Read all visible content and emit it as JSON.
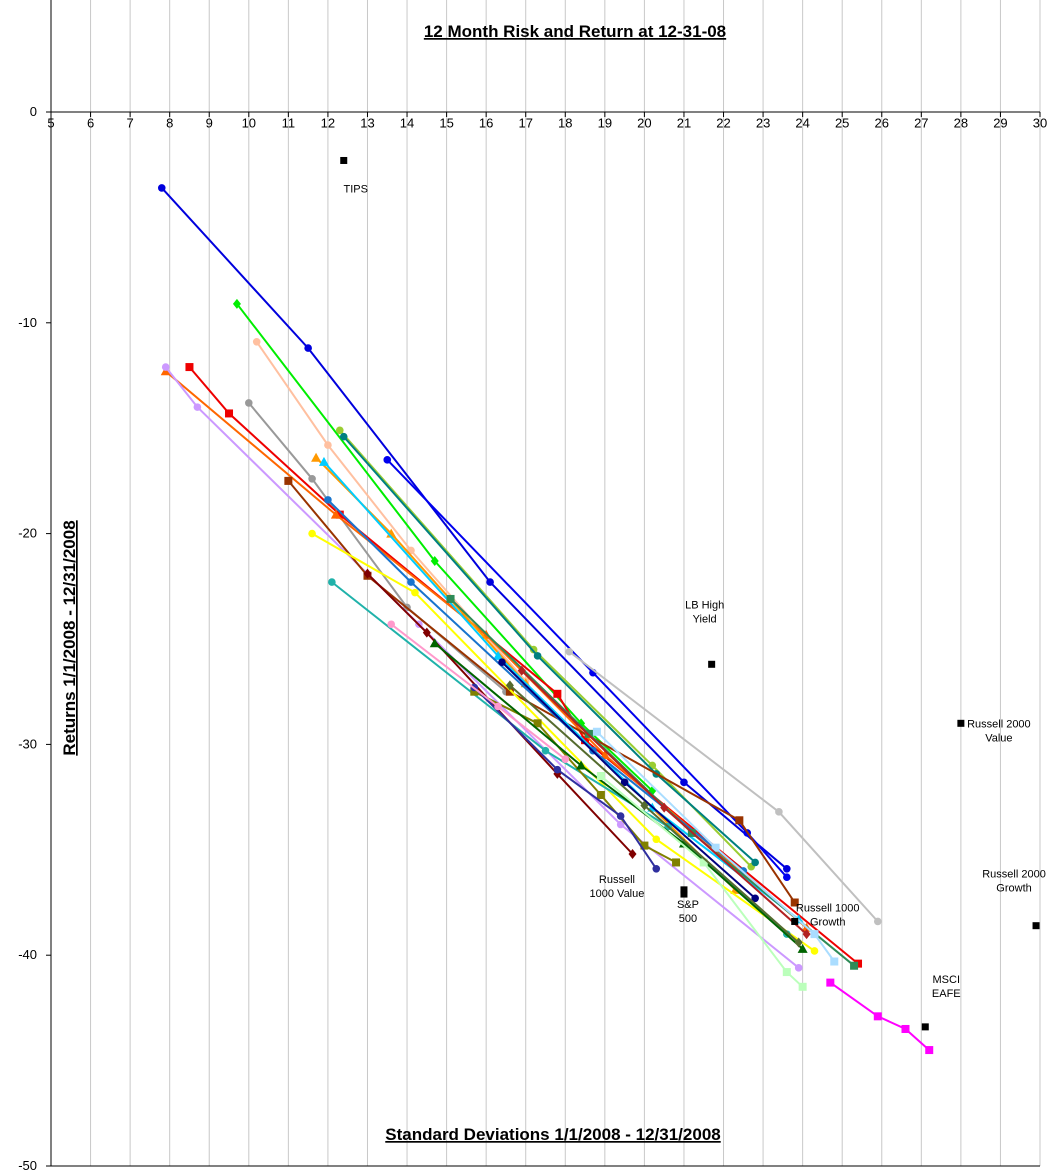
{
  "chart_data": {
    "type": "scatter",
    "title": "12 Month Risk and Return at 12-31-08",
    "xlabel": "Standard Deviations 1/1/2008 - 12/31/2008",
    "ylabel": "Returns 1/1/2008 - 12/31/2008",
    "xlim": [
      5,
      30
    ],
    "ylim": [
      -50,
      0
    ],
    "x_ticks": [
      "5",
      "6",
      "7",
      "8",
      "9",
      "10",
      "11",
      "12",
      "13",
      "14",
      "15",
      "16",
      "17",
      "18",
      "19",
      "20",
      "21",
      "22",
      "23",
      "24",
      "25",
      "26",
      "27",
      "28",
      "29",
      "30"
    ],
    "y_ticks": [
      "0",
      "-10",
      "-20",
      "-30",
      "-40",
      "-50"
    ],
    "grid": true,
    "legend": "none",
    "benchmarks": [
      {
        "label": "TIPS",
        "x": 12.4,
        "y": -2.3
      },
      {
        "label": "LB High Yield",
        "x": 21.7,
        "y": -26.2
      },
      {
        "label": "Russell 2000 Value",
        "x": 28.0,
        "y": -29.0
      },
      {
        "label": "Russell 2000 Growth",
        "x": 29.9,
        "y": -38.6
      },
      {
        "label": "Russell 1000 Value",
        "x": 21.0,
        "y": -36.9
      },
      {
        "label": "S&P 500",
        "x": 21.0,
        "y": -37.1
      },
      {
        "label": "Russell 1000 Growth",
        "x": 23.8,
        "y": -38.4
      },
      {
        "label": "MSCI EAFE",
        "x": 27.1,
        "y": -43.4
      }
    ],
    "series": [
      {
        "color": "#0000dd",
        "marker": "circle",
        "points": [
          [
            7.8,
            -3.6
          ],
          [
            11.5,
            -11.2
          ],
          [
            16.1,
            -22.3
          ],
          [
            21.0,
            -31.8
          ],
          [
            23.6,
            -35.9
          ]
        ]
      },
      {
        "color": "#0000ee",
        "marker": "circle",
        "points": [
          [
            13.5,
            -16.5
          ],
          [
            18.7,
            -26.6
          ],
          [
            22.6,
            -34.2
          ],
          [
            23.6,
            -36.3
          ]
        ]
      },
      {
        "color": "#00ee00",
        "marker": "diamond",
        "points": [
          [
            9.7,
            -9.1
          ],
          [
            14.7,
            -21.3
          ],
          [
            18.4,
            -29.0
          ],
          [
            20.2,
            -32.2
          ]
        ]
      },
      {
        "color": "#9acd32",
        "marker": "circle",
        "points": [
          [
            12.3,
            -15.1
          ],
          [
            17.2,
            -25.5
          ],
          [
            20.2,
            -31.0
          ],
          [
            22.7,
            -35.8
          ]
        ]
      },
      {
        "color": "#008080",
        "marker": "circle",
        "points": [
          [
            12.4,
            -15.4
          ],
          [
            17.3,
            -25.8
          ],
          [
            20.3,
            -31.4
          ],
          [
            22.8,
            -35.6
          ]
        ]
      },
      {
        "color": "#ffc0a0",
        "marker": "circle",
        "points": [
          [
            10.2,
            -10.9
          ],
          [
            12.0,
            -15.8
          ],
          [
            14.1,
            -20.8
          ],
          [
            17.0,
            -27.0
          ]
        ]
      },
      {
        "color": "#999999",
        "marker": "circle",
        "points": [
          [
            10.0,
            -13.8
          ],
          [
            11.6,
            -17.4
          ],
          [
            14.0,
            -23.5
          ],
          [
            16.5,
            -27.5
          ]
        ]
      },
      {
        "color": "#ee0000",
        "marker": "square",
        "points": [
          [
            8.5,
            -12.1
          ],
          [
            9.5,
            -14.3
          ],
          [
            12.3,
            -19.1
          ],
          [
            17.8,
            -27.6
          ],
          [
            18.5,
            -29.8
          ],
          [
            25.4,
            -40.4
          ]
        ]
      },
      {
        "color": "#ff6600",
        "marker": "triangle",
        "points": [
          [
            7.9,
            -12.3
          ],
          [
            12.2,
            -19.1
          ],
          [
            16.0,
            -24.8
          ],
          [
            19.0,
            -30.5
          ],
          [
            24.1,
            -38.7
          ]
        ]
      },
      {
        "color": "#cc99ff",
        "marker": "circle",
        "points": [
          [
            7.9,
            -12.1
          ],
          [
            8.7,
            -14.0
          ],
          [
            14.3,
            -24.3
          ],
          [
            19.4,
            -33.8
          ],
          [
            23.9,
            -40.6
          ]
        ]
      },
      {
        "color": "#993300",
        "marker": "square",
        "points": [
          [
            11.0,
            -17.5
          ],
          [
            13.0,
            -22.0
          ],
          [
            16.6,
            -27.5
          ],
          [
            22.4,
            -33.6
          ],
          [
            23.8,
            -37.5
          ]
        ]
      },
      {
        "color": "#ff9900",
        "marker": "triangle",
        "points": [
          [
            11.7,
            -16.4
          ],
          [
            13.6,
            -20.0
          ],
          [
            17.0,
            -27.1
          ],
          [
            22.3,
            -36.9
          ]
        ]
      },
      {
        "color": "#00ccff",
        "marker": "triangle",
        "points": [
          [
            11.9,
            -16.6
          ],
          [
            16.3,
            -25.8
          ],
          [
            20.2,
            -33.0
          ],
          [
            23.9,
            -38.3
          ]
        ]
      },
      {
        "color": "#1874cd",
        "marker": "circle",
        "points": [
          [
            12.0,
            -18.4
          ],
          [
            14.1,
            -22.3
          ],
          [
            18.7,
            -30.3
          ],
          [
            22.5,
            -36.0
          ]
        ]
      },
      {
        "color": "#ffff00",
        "marker": "circle",
        "points": [
          [
            11.6,
            -20.0
          ],
          [
            14.2,
            -22.8
          ],
          [
            20.3,
            -34.5
          ],
          [
            24.3,
            -39.8
          ]
        ]
      },
      {
        "color": "#20b2aa",
        "marker": "circle",
        "points": [
          [
            12.1,
            -22.3
          ],
          [
            17.5,
            -30.3
          ],
          [
            20.6,
            -33.9
          ],
          [
            23.6,
            -39.0
          ]
        ]
      },
      {
        "color": "#808000",
        "marker": "square",
        "points": [
          [
            15.7,
            -27.5
          ],
          [
            17.3,
            -29.0
          ],
          [
            18.9,
            -32.4
          ],
          [
            20.0,
            -34.8
          ],
          [
            20.8,
            -35.6
          ]
        ]
      },
      {
        "color": "#800000",
        "marker": "diamond",
        "points": [
          [
            13.0,
            -21.9
          ],
          [
            14.5,
            -24.7
          ],
          [
            17.8,
            -31.4
          ],
          [
            19.7,
            -35.2
          ]
        ]
      },
      {
        "color": "#006400",
        "marker": "triangle",
        "points": [
          [
            14.7,
            -25.2
          ],
          [
            18.4,
            -31.0
          ],
          [
            21.0,
            -34.7
          ],
          [
            24.0,
            -39.7
          ]
        ]
      },
      {
        "color": "#2f2f9f",
        "marker": "circle",
        "points": [
          [
            15.7,
            -27.3
          ],
          [
            17.8,
            -31.2
          ],
          [
            19.4,
            -33.4
          ],
          [
            20.3,
            -35.9
          ]
        ]
      },
      {
        "color": "#ff99cc",
        "marker": "circle",
        "points": [
          [
            13.6,
            -24.3
          ],
          [
            16.3,
            -28.2
          ],
          [
            18.0,
            -30.7
          ]
        ]
      },
      {
        "color": "#2e8b57",
        "marker": "square",
        "points": [
          [
            15.1,
            -23.1
          ],
          [
            18.6,
            -29.5
          ],
          [
            21.2,
            -34.2
          ],
          [
            25.3,
            -40.5
          ]
        ]
      },
      {
        "color": "#c0c0c0",
        "marker": "circle",
        "points": [
          [
            18.1,
            -25.6
          ],
          [
            23.4,
            -33.2
          ],
          [
            25.9,
            -38.4
          ]
        ]
      },
      {
        "color": "#ff00ff",
        "marker": "square",
        "points": [
          [
            24.7,
            -41.3
          ],
          [
            25.9,
            -42.9
          ],
          [
            26.6,
            -43.5
          ],
          [
            27.2,
            -44.5
          ]
        ]
      },
      {
        "color": "#bbffbb",
        "marker": "square",
        "points": [
          [
            18.9,
            -31.5
          ],
          [
            21.5,
            -35.6
          ],
          [
            23.6,
            -40.8
          ],
          [
            24.0,
            -41.5
          ]
        ]
      },
      {
        "color": "#aaddff",
        "marker": "square",
        "points": [
          [
            18.8,
            -29.4
          ],
          [
            21.8,
            -34.9
          ],
          [
            24.3,
            -39.0
          ],
          [
            24.8,
            -40.3
          ]
        ]
      },
      {
        "color": "#000080",
        "marker": "circle",
        "points": [
          [
            16.4,
            -26.1
          ],
          [
            19.5,
            -31.8
          ],
          [
            22.8,
            -37.3
          ]
        ]
      },
      {
        "color": "#556b2f",
        "marker": "diamond",
        "points": [
          [
            16.6,
            -27.2
          ],
          [
            20.0,
            -32.9
          ],
          [
            23.9,
            -39.4
          ]
        ]
      },
      {
        "color": "#b22222",
        "marker": "diamond",
        "points": [
          [
            16.9,
            -26.5
          ],
          [
            20.5,
            -33.0
          ],
          [
            24.1,
            -39.0
          ]
        ]
      }
    ]
  }
}
